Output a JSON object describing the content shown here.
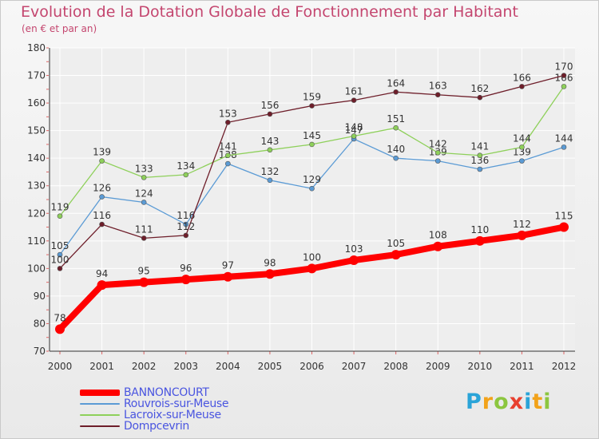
{
  "title": "Evolution de la Dotation Globale de Fonctionnement par Habitant",
  "subtitle": "(en € et par an)",
  "brand": {
    "letters": [
      "P",
      "r",
      "o",
      "x",
      "i",
      "t",
      "i"
    ],
    "colors": [
      "#2aa4d8",
      "#f2a21a",
      "#8cc63f",
      "#e8402f",
      "#2aa4d8",
      "#f2a21a",
      "#8cc63f"
    ]
  },
  "chart_data": {
    "type": "line",
    "title": "Evolution de la Dotation Globale de Fonctionnement par Habitant",
    "ylabel": "(en € et par an)",
    "xlabel": "",
    "categories": [
      "2000",
      "2001",
      "2002",
      "2003",
      "2004",
      "2005",
      "2006",
      "2007",
      "2008",
      "2009",
      "2010",
      "2011",
      "2012"
    ],
    "ylim": [
      70,
      180
    ],
    "yticks": [
      "70",
      "80",
      "90",
      "100",
      "110",
      "120",
      "130",
      "140",
      "150",
      "160",
      "170",
      "180"
    ],
    "grid": true,
    "legend_position": "bottom-left",
    "series": [
      {
        "name": "BANNONCOURT",
        "color": "#ff0000",
        "emphasis": true,
        "values": [
          78,
          94,
          95,
          96,
          97,
          98,
          100,
          103,
          105,
          108,
          110,
          112,
          115
        ],
        "labels": [
          "78",
          "94",
          "95",
          "96",
          "97",
          "98",
          "100",
          "103",
          "105",
          "108",
          "110",
          "112",
          "115"
        ]
      },
      {
        "name": "Rouvrois-sur-Meuse",
        "color": "#5b9bd5",
        "emphasis": false,
        "values": [
          105,
          126,
          124,
          116,
          138,
          132,
          129,
          147,
          140,
          139,
          136,
          139,
          144
        ],
        "labels": [
          "105",
          "126",
          "124",
          "116",
          "138",
          "132",
          "129",
          "147",
          "140",
          "139",
          "136",
          "139",
          "144"
        ]
      },
      {
        "name": "Lacroix-sur-Meuse",
        "color": "#8ed05a",
        "emphasis": false,
        "values": [
          119,
          139,
          133,
          134,
          141,
          143,
          145,
          148,
          151,
          142,
          141,
          144,
          166
        ],
        "labels": [
          "119",
          "139",
          "133",
          "134",
          "141",
          "143",
          "145",
          "148",
          "151",
          "142",
          "141",
          "144",
          "166"
        ]
      },
      {
        "name": "Dompcevrin",
        "color": "#6e1e2a",
        "emphasis": false,
        "values": [
          100,
          116,
          111,
          112,
          153,
          156,
          159,
          161,
          164,
          163,
          162,
          166,
          170
        ],
        "labels": [
          "100",
          "116",
          "111",
          "112",
          "153",
          "156",
          "159",
          "161",
          "164",
          "163",
          "162",
          "166",
          "170"
        ]
      }
    ]
  }
}
